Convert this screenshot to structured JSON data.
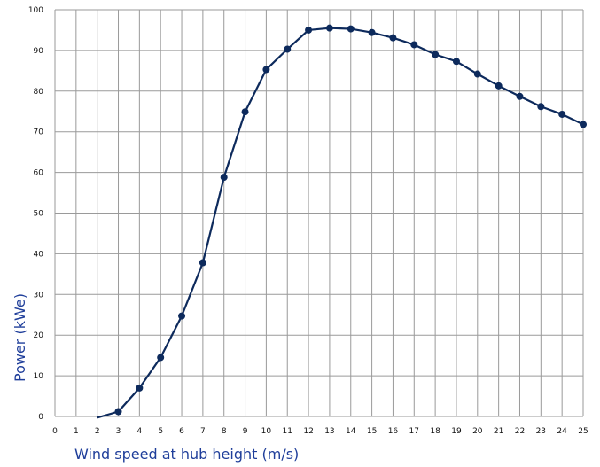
{
  "chart_data": {
    "type": "line",
    "xlabel": "Wind speed at hub height (m/s)",
    "ylabel": "Power  (kWe)",
    "xlim": [
      0,
      25
    ],
    "ylim": [
      0,
      100
    ],
    "x_ticks": [
      0,
      1,
      2,
      3,
      4,
      5,
      6,
      7,
      8,
      9,
      10,
      11,
      12,
      13,
      14,
      15,
      16,
      17,
      18,
      19,
      20,
      21,
      22,
      23,
      24,
      25
    ],
    "y_ticks": [
      0,
      10,
      20,
      30,
      40,
      50,
      60,
      70,
      80,
      90,
      100
    ],
    "grid": true,
    "legend": "none",
    "series": [
      {
        "color": "#0d2a5c",
        "x": [
          3,
          4,
          5,
          6,
          7,
          8,
          9,
          10,
          11,
          12,
          13,
          14,
          15,
          16,
          17,
          18,
          19,
          20,
          21,
          22,
          23,
          24,
          25
        ],
        "y": [
          1.2,
          7,
          14.5,
          24.7,
          37.8,
          58.8,
          74.9,
          85.3,
          90.3,
          95,
          95.5,
          95.3,
          94.4,
          93.1,
          91.4,
          89,
          87.3,
          84.2,
          81.3,
          78.7,
          76.2,
          74.3,
          71.8
        ]
      }
    ],
    "curve_start": {
      "x": 2,
      "y": -0.3
    }
  }
}
